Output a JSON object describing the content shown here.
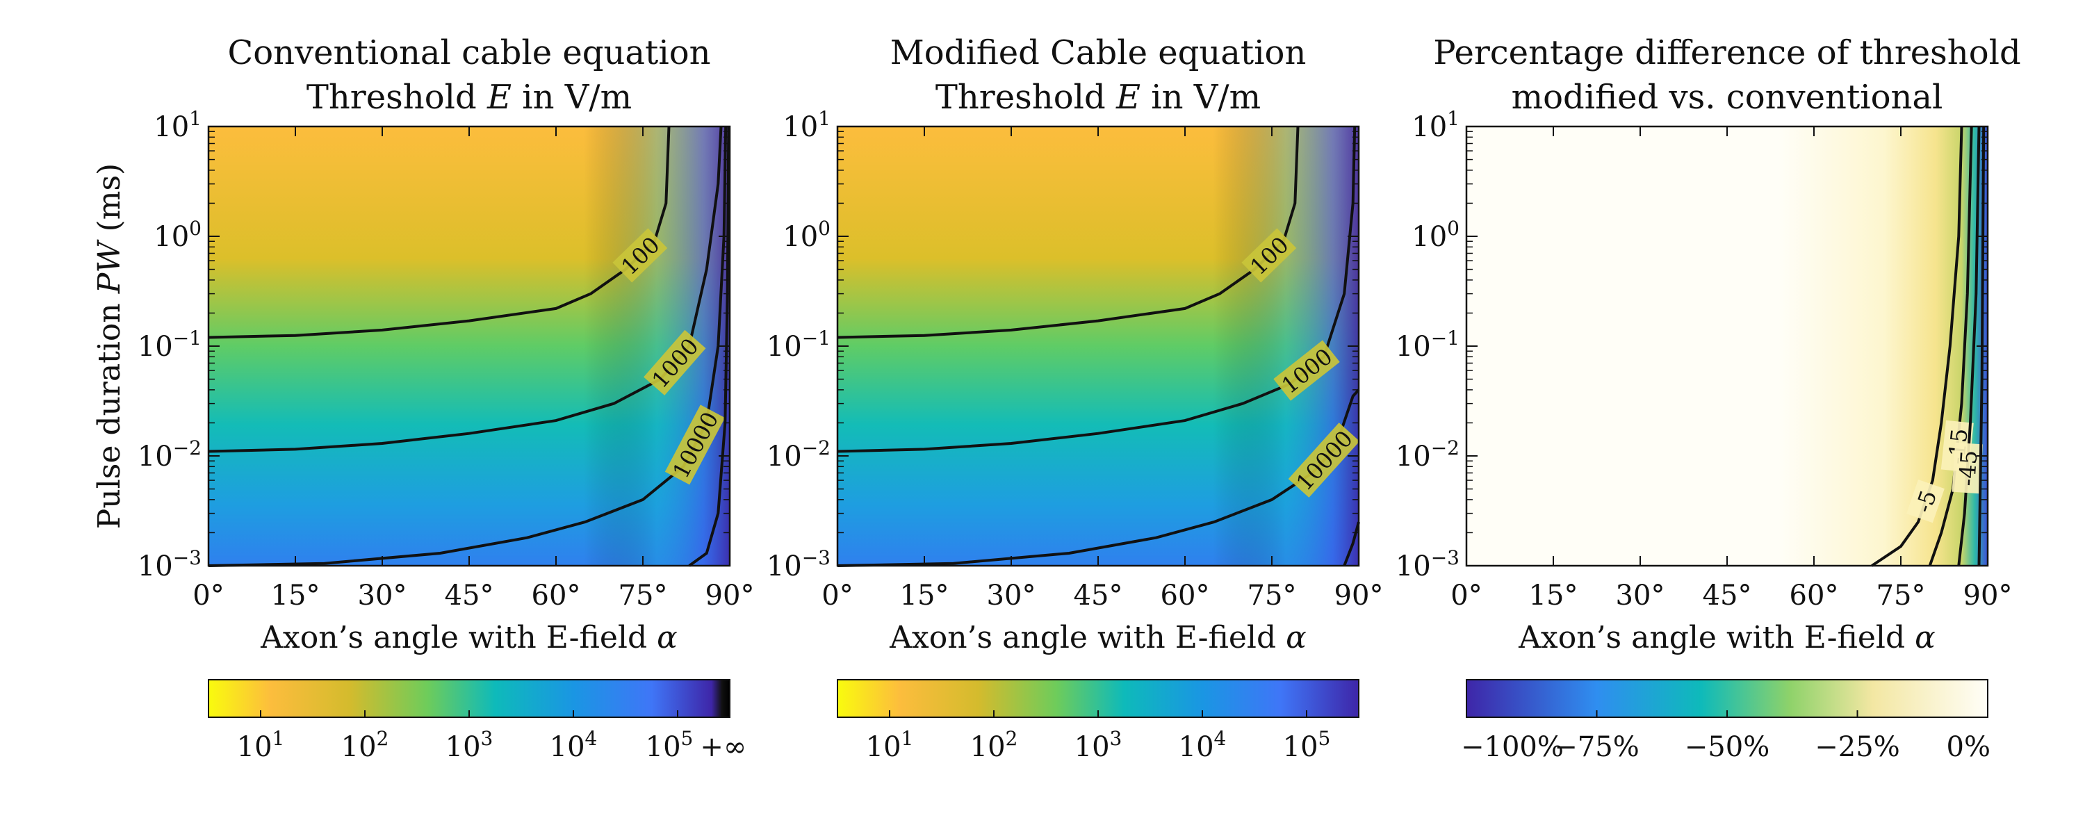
{
  "chart_data": [
    {
      "type": "heatmap",
      "title": [
        "Conventional cable equation",
        "Threshold E in V/m"
      ],
      "xlabel": "Axon’s angle with E-field α",
      "ylabel": "Pulse duration PW (ms)",
      "x_ticks": [
        "0°",
        "15°",
        "30°",
        "45°",
        "60°",
        "75°",
        "90°"
      ],
      "x_range_deg": [
        0,
        90
      ],
      "y_ticks": [
        "10-3",
        "10-2",
        "10-1",
        "100",
        "101"
      ],
      "y_scale": "log",
      "y_range_ms": [
        0.001,
        10
      ],
      "contours": [
        {
          "label": "100",
          "points_deg_ms": [
            [
              0,
              0.12
            ],
            [
              15,
              0.125
            ],
            [
              30,
              0.14
            ],
            [
              45,
              0.17
            ],
            [
              60,
              0.22
            ],
            [
              66,
              0.3
            ],
            [
              72,
              0.5
            ],
            [
              77,
              0.9
            ],
            [
              79,
              2
            ],
            [
              79.5,
              10
            ]
          ]
        },
        {
          "label": "1000",
          "points_deg_ms": [
            [
              0,
              0.011
            ],
            [
              15,
              0.0115
            ],
            [
              30,
              0.013
            ],
            [
              45,
              0.016
            ],
            [
              60,
              0.021
            ],
            [
              70,
              0.03
            ],
            [
              78,
              0.05
            ],
            [
              83,
              0.1
            ],
            [
              86,
              0.5
            ],
            [
              88,
              3
            ],
            [
              88.5,
              10
            ]
          ]
        },
        {
          "label": "10000",
          "points_deg_ms": [
            [
              0,
              0.001
            ],
            [
              20,
              0.00105
            ],
            [
              40,
              0.0013
            ],
            [
              55,
              0.0018
            ],
            [
              65,
              0.0025
            ],
            [
              75,
              0.004
            ],
            [
              82,
              0.008
            ],
            [
              86,
              0.02
            ],
            [
              88,
              0.1
            ],
            [
              89,
              1
            ],
            [
              89.3,
              10
            ]
          ]
        },
        {
          "label": "",
          "points_deg_ms": [
            [
              83,
              0.001
            ],
            [
              86,
              0.0013
            ],
            [
              88,
              0.003
            ],
            [
              89.2,
              0.02
            ],
            [
              89.6,
              0.3
            ],
            [
              89.8,
              10
            ]
          ]
        }
      ],
      "colorbar": {
        "ticks": [
          "101",
          "102",
          "103",
          "104",
          "105",
          "+∞"
        ]
      }
    },
    {
      "type": "heatmap",
      "title": [
        "Modified Cable equation",
        "Threshold E in V/m"
      ],
      "xlabel": "Axon’s angle with E-field α",
      "x_ticks": [
        "0°",
        "15°",
        "30°",
        "45°",
        "60°",
        "75°",
        "90°"
      ],
      "x_range_deg": [
        0,
        90
      ],
      "y_ticks": [
        "10-3",
        "10-2",
        "10-1",
        "100",
        "101"
      ],
      "y_scale": "log",
      "y_range_ms": [
        0.001,
        10
      ],
      "contours": [
        {
          "label": "100",
          "points_deg_ms": [
            [
              0,
              0.12
            ],
            [
              15,
              0.125
            ],
            [
              30,
              0.14
            ],
            [
              45,
              0.17
            ],
            [
              60,
              0.22
            ],
            [
              66,
              0.3
            ],
            [
              72,
              0.5
            ],
            [
              77,
              0.9
            ],
            [
              79,
              2
            ],
            [
              79.5,
              10
            ]
          ]
        },
        {
          "label": "1000",
          "points_deg_ms": [
            [
              0,
              0.011
            ],
            [
              15,
              0.0115
            ],
            [
              30,
              0.013
            ],
            [
              45,
              0.016
            ],
            [
              60,
              0.021
            ],
            [
              70,
              0.03
            ],
            [
              78,
              0.045
            ],
            [
              84,
              0.08
            ],
            [
              87.5,
              0.3
            ],
            [
              89,
              2
            ],
            [
              89.3,
              10
            ]
          ]
        },
        {
          "label": "10000",
          "points_deg_ms": [
            [
              0,
              0.001
            ],
            [
              20,
              0.00105
            ],
            [
              40,
              0.0013
            ],
            [
              55,
              0.0018
            ],
            [
              65,
              0.0025
            ],
            [
              75,
              0.004
            ],
            [
              82,
              0.007
            ],
            [
              86,
              0.012
            ],
            [
              89,
              0.035
            ],
            [
              90,
              0.04
            ]
          ]
        },
        {
          "label": "",
          "points_deg_ms": [
            [
              87.5,
              0.001
            ],
            [
              89,
              0.0016
            ],
            [
              90,
              0.0025
            ]
          ]
        }
      ],
      "colorbar": {
        "ticks": [
          "101",
          "102",
          "103",
          "104",
          "105"
        ]
      }
    },
    {
      "type": "heatmap",
      "title": [
        "Percentage difference of threshold",
        "modified vs. conventional"
      ],
      "xlabel": "Axon’s angle with E-field α",
      "x_ticks": [
        "0°",
        "15°",
        "30°",
        "45°",
        "60°",
        "75°",
        "90°"
      ],
      "x_range_deg": [
        0,
        90
      ],
      "y_ticks": [
        "10-3",
        "10-2",
        "10-1",
        "100",
        "101"
      ],
      "y_scale": "log",
      "y_range_ms": [
        0.001,
        10
      ],
      "contours": [
        {
          "label": "-5",
          "points_deg_ms": [
            [
              70,
              0.001
            ],
            [
              75,
              0.0015
            ],
            [
              78,
              0.0025
            ],
            [
              80.5,
              0.006
            ],
            [
              82,
              0.02
            ],
            [
              83.5,
              0.1
            ],
            [
              85,
              1
            ],
            [
              85.5,
              10
            ]
          ]
        },
        {
          "label": "-15",
          "points_deg_ms": [
            [
              80,
              0.001
            ],
            [
              82,
              0.002
            ],
            [
              84,
              0.005
            ],
            [
              85.5,
              0.03
            ],
            [
              86.5,
              0.3
            ],
            [
              87.2,
              10
            ]
          ]
        },
        {
          "label": "-45",
          "points_deg_ms": [
            [
              85,
              0.001
            ],
            [
              86,
              0.003
            ],
            [
              87,
              0.02
            ],
            [
              88,
              0.3
            ],
            [
              88.5,
              10
            ]
          ]
        },
        {
          "label": "",
          "points_deg_ms": [
            [
              88.5,
              0.001
            ],
            [
              89,
              0.05
            ],
            [
              89.3,
              10
            ]
          ]
        }
      ],
      "colorbar": {
        "ticks": [
          "−100%",
          "−75%",
          "−50%",
          "−25%",
          "0%"
        ]
      }
    }
  ]
}
